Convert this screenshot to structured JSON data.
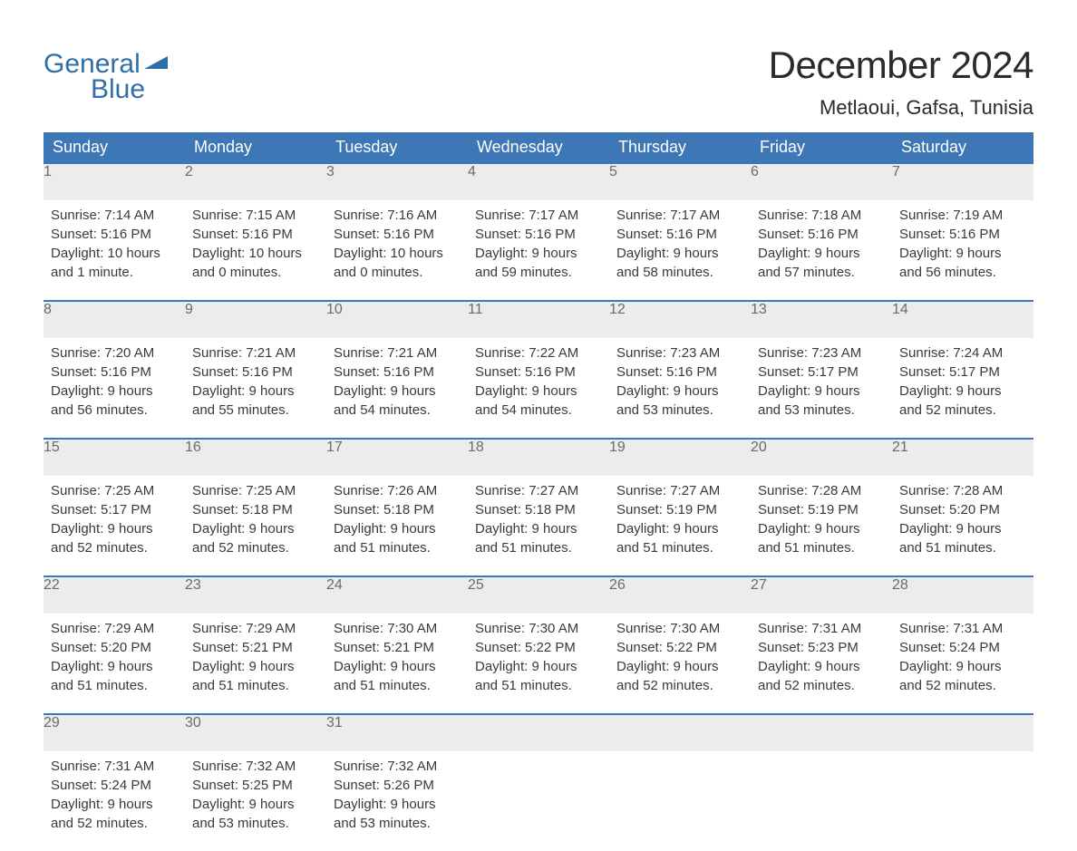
{
  "brand": {
    "part1": "General",
    "part2": "Blue",
    "color": "#2f6fa8"
  },
  "title": "December 2024",
  "location": "Metlaoui, Gafsa, Tunisia",
  "colors": {
    "header_bg": "#3d77b6",
    "header_text": "#ffffff",
    "daynum_bg": "#ececec",
    "daynum_text": "#6b6b6b",
    "body_text": "#3a3a3a",
    "row_border": "#3d77b6",
    "page_bg": "#ffffff"
  },
  "typography": {
    "title_fontsize": 42,
    "location_fontsize": 22,
    "header_fontsize": 18,
    "daynum_fontsize": 16,
    "body_fontsize": 15
  },
  "layout": {
    "columns": 7,
    "weeks": 5
  },
  "weekdays": [
    "Sunday",
    "Monday",
    "Tuesday",
    "Wednesday",
    "Thursday",
    "Friday",
    "Saturday"
  ],
  "days": [
    {
      "n": 1,
      "sunrise": "7:14 AM",
      "sunset": "5:16 PM",
      "dl_h": 10,
      "dl_m": 1
    },
    {
      "n": 2,
      "sunrise": "7:15 AM",
      "sunset": "5:16 PM",
      "dl_h": 10,
      "dl_m": 0
    },
    {
      "n": 3,
      "sunrise": "7:16 AM",
      "sunset": "5:16 PM",
      "dl_h": 10,
      "dl_m": 0
    },
    {
      "n": 4,
      "sunrise": "7:17 AM",
      "sunset": "5:16 PM",
      "dl_h": 9,
      "dl_m": 59
    },
    {
      "n": 5,
      "sunrise": "7:17 AM",
      "sunset": "5:16 PM",
      "dl_h": 9,
      "dl_m": 58
    },
    {
      "n": 6,
      "sunrise": "7:18 AM",
      "sunset": "5:16 PM",
      "dl_h": 9,
      "dl_m": 57
    },
    {
      "n": 7,
      "sunrise": "7:19 AM",
      "sunset": "5:16 PM",
      "dl_h": 9,
      "dl_m": 56
    },
    {
      "n": 8,
      "sunrise": "7:20 AM",
      "sunset": "5:16 PM",
      "dl_h": 9,
      "dl_m": 56
    },
    {
      "n": 9,
      "sunrise": "7:21 AM",
      "sunset": "5:16 PM",
      "dl_h": 9,
      "dl_m": 55
    },
    {
      "n": 10,
      "sunrise": "7:21 AM",
      "sunset": "5:16 PM",
      "dl_h": 9,
      "dl_m": 54
    },
    {
      "n": 11,
      "sunrise": "7:22 AM",
      "sunset": "5:16 PM",
      "dl_h": 9,
      "dl_m": 54
    },
    {
      "n": 12,
      "sunrise": "7:23 AM",
      "sunset": "5:16 PM",
      "dl_h": 9,
      "dl_m": 53
    },
    {
      "n": 13,
      "sunrise": "7:23 AM",
      "sunset": "5:17 PM",
      "dl_h": 9,
      "dl_m": 53
    },
    {
      "n": 14,
      "sunrise": "7:24 AM",
      "sunset": "5:17 PM",
      "dl_h": 9,
      "dl_m": 52
    },
    {
      "n": 15,
      "sunrise": "7:25 AM",
      "sunset": "5:17 PM",
      "dl_h": 9,
      "dl_m": 52
    },
    {
      "n": 16,
      "sunrise": "7:25 AM",
      "sunset": "5:18 PM",
      "dl_h": 9,
      "dl_m": 52
    },
    {
      "n": 17,
      "sunrise": "7:26 AM",
      "sunset": "5:18 PM",
      "dl_h": 9,
      "dl_m": 51
    },
    {
      "n": 18,
      "sunrise": "7:27 AM",
      "sunset": "5:18 PM",
      "dl_h": 9,
      "dl_m": 51
    },
    {
      "n": 19,
      "sunrise": "7:27 AM",
      "sunset": "5:19 PM",
      "dl_h": 9,
      "dl_m": 51
    },
    {
      "n": 20,
      "sunrise": "7:28 AM",
      "sunset": "5:19 PM",
      "dl_h": 9,
      "dl_m": 51
    },
    {
      "n": 21,
      "sunrise": "7:28 AM",
      "sunset": "5:20 PM",
      "dl_h": 9,
      "dl_m": 51
    },
    {
      "n": 22,
      "sunrise": "7:29 AM",
      "sunset": "5:20 PM",
      "dl_h": 9,
      "dl_m": 51
    },
    {
      "n": 23,
      "sunrise": "7:29 AM",
      "sunset": "5:21 PM",
      "dl_h": 9,
      "dl_m": 51
    },
    {
      "n": 24,
      "sunrise": "7:30 AM",
      "sunset": "5:21 PM",
      "dl_h": 9,
      "dl_m": 51
    },
    {
      "n": 25,
      "sunrise": "7:30 AM",
      "sunset": "5:22 PM",
      "dl_h": 9,
      "dl_m": 51
    },
    {
      "n": 26,
      "sunrise": "7:30 AM",
      "sunset": "5:22 PM",
      "dl_h": 9,
      "dl_m": 52
    },
    {
      "n": 27,
      "sunrise": "7:31 AM",
      "sunset": "5:23 PM",
      "dl_h": 9,
      "dl_m": 52
    },
    {
      "n": 28,
      "sunrise": "7:31 AM",
      "sunset": "5:24 PM",
      "dl_h": 9,
      "dl_m": 52
    },
    {
      "n": 29,
      "sunrise": "7:31 AM",
      "sunset": "5:24 PM",
      "dl_h": 9,
      "dl_m": 52
    },
    {
      "n": 30,
      "sunrise": "7:32 AM",
      "sunset": "5:25 PM",
      "dl_h": 9,
      "dl_m": 53
    },
    {
      "n": 31,
      "sunrise": "7:32 AM",
      "sunset": "5:26 PM",
      "dl_h": 9,
      "dl_m": 53
    }
  ],
  "labels": {
    "sunrise": "Sunrise:",
    "sunset": "Sunset:",
    "daylight": "Daylight:",
    "hours": "hours",
    "and": "and",
    "minute": "minute.",
    "minutes": "minutes."
  }
}
